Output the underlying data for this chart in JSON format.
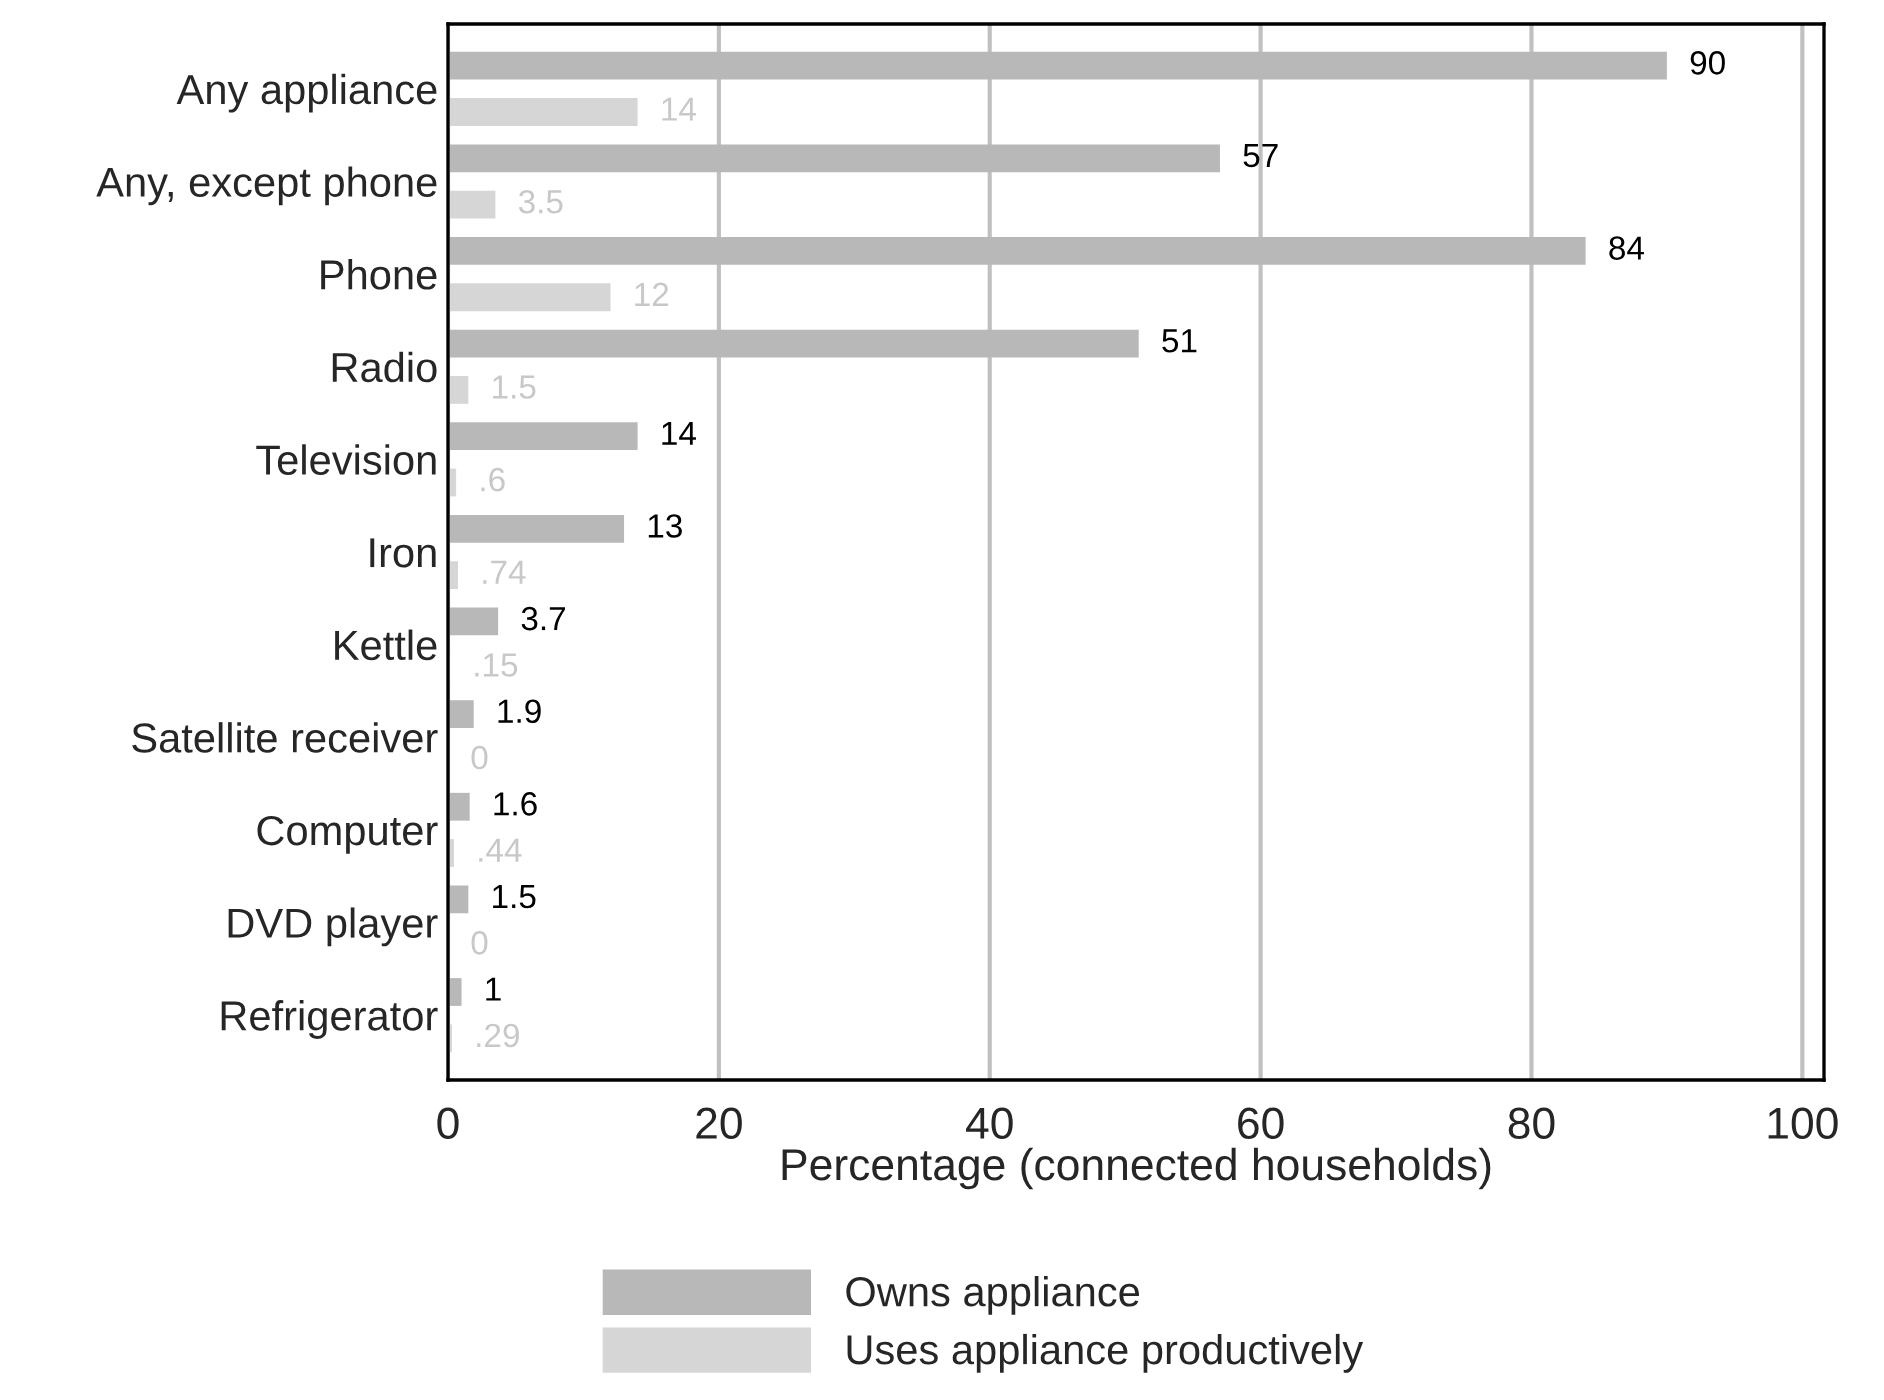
{
  "chart_data": {
    "type": "bar",
    "orientation": "horizontal",
    "xlabel": "Percentage (connected households)",
    "categories": [
      "Any appliance",
      "Any, except phone",
      "Phone",
      "Radio",
      "Television",
      "Iron",
      "Kettle",
      "Satellite receiver",
      "Computer",
      "DVD player",
      "Refrigerator"
    ],
    "series": [
      {
        "name": "Owns appliance",
        "color": "#b8b8b8",
        "values": [
          90,
          57,
          84,
          51,
          14,
          13,
          3.7,
          1.9,
          1.6,
          1.5,
          1
        ],
        "value_labels": [
          "90",
          "57",
          "84",
          "51",
          "14",
          "13",
          "3.7",
          "1.9",
          "1.6",
          "1.5",
          "1"
        ]
      },
      {
        "name": "Uses appliance productively",
        "color": "#d6d6d6",
        "values": [
          14,
          3.5,
          12,
          1.5,
          0.6,
          0.74,
          0.15,
          0,
          0.44,
          0,
          0.29
        ],
        "value_labels": [
          "14",
          "3.5",
          "12",
          "1.5",
          ".6",
          ".74",
          ".15",
          "0",
          ".44",
          "0",
          ".29"
        ]
      }
    ],
    "xlim": [
      0,
      101.6
    ],
    "xticks": [
      0,
      20,
      40,
      60,
      80,
      100
    ],
    "grid": "x",
    "legend": "bottom"
  }
}
